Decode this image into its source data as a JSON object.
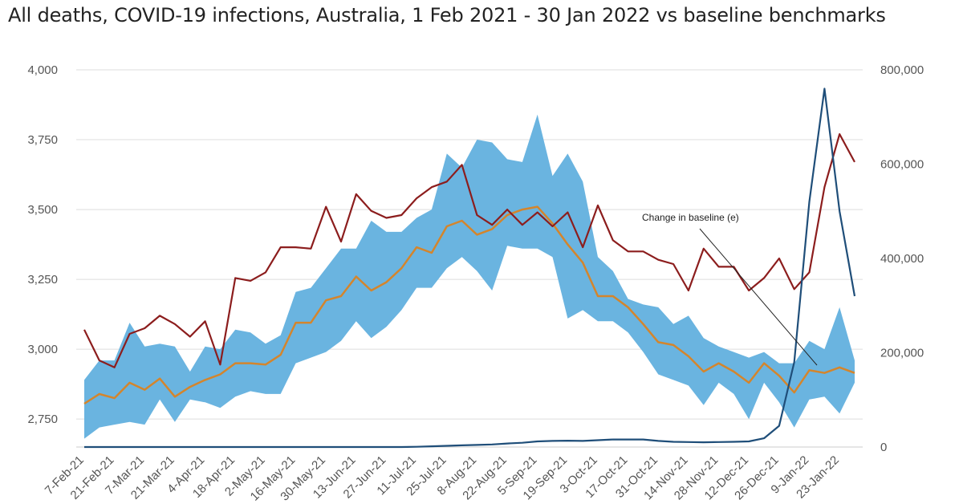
{
  "chart_data": {
    "type": "line",
    "title": "All deaths, COVID-19 infections, Australia, 1 Feb 2021 - 30 Jan 2022 vs baseline benchmarks",
    "ylim_left": [
      2650,
      4000
    ],
    "ylim_right": [
      0,
      800000
    ],
    "y_ticks_left": [
      "2,750",
      "3,000",
      "3,250",
      "3,500",
      "3,750",
      "4,000"
    ],
    "y_tick_values_left": [
      2750,
      3000,
      3250,
      3500,
      3750,
      4000
    ],
    "y_ticks_right": [
      "0",
      "200,000",
      "400,000",
      "600,000",
      "800,000"
    ],
    "y_tick_values_right": [
      0,
      200000,
      400000,
      600000,
      800000
    ],
    "grid": true,
    "categories": [
      "7-Feb-21",
      "14-Feb-21",
      "21-Feb-21",
      "28-Feb-21",
      "7-Mar-21",
      "14-Mar-21",
      "21-Mar-21",
      "28-Mar-21",
      "4-Apr-21",
      "11-Apr-21",
      "18-Apr-21",
      "25-Apr-21",
      "2-May-21",
      "9-May-21",
      "16-May-21",
      "23-May-21",
      "30-May-21",
      "6-Jun-21",
      "13-Jun-21",
      "20-Jun-21",
      "27-Jun-21",
      "4-Jul-21",
      "11-Jul-21",
      "18-Jul-21",
      "25-Jul-21",
      "1-Aug-21",
      "8-Aug-21",
      "15-Aug-21",
      "22-Aug-21",
      "29-Aug-21",
      "5-Sep-21",
      "12-Sep-21",
      "19-Sep-21",
      "26-Sep-21",
      "3-Oct-21",
      "10-Oct-21",
      "17-Oct-21",
      "24-Oct-21",
      "31-Oct-21",
      "7-Nov-21",
      "14-Nov-21",
      "21-Nov-21",
      "28-Nov-21",
      "5-Dec-21",
      "12-Dec-21",
      "19-Dec-21",
      "26-Dec-21",
      "2-Jan-22",
      "9-Jan-22",
      "16-Jan-22",
      "23-Jan-22",
      "30-Jan-22"
    ],
    "x_tick_labels": [
      "7-Feb-21",
      "21-Feb-21",
      "7-Mar-21",
      "21-Mar-21",
      "4-Apr-21",
      "18-Apr-21",
      "2-May-21",
      "16-May-21",
      "30-May-21",
      "13-Jun-21",
      "27-Jun-21",
      "11-Jul-21",
      "25-Jul-21",
      "8-Aug-21",
      "22-Aug-21",
      "5-Sep-21",
      "19-Sep-21",
      "3-Oct-21",
      "17-Oct-21",
      "31-Oct-21",
      "14-Nov-21",
      "28-Nov-21",
      "12-Dec-21",
      "26-Dec-21",
      "9-Jan-22",
      "23-Jan-22"
    ],
    "series": [
      {
        "axis": "left",
        "kind": "band",
        "color": "#6ab4e0",
        "upper": [
          2890,
          2960,
          2960,
          3095,
          3010,
          3020,
          3010,
          2920,
          3010,
          3000,
          3070,
          3060,
          3020,
          3050,
          3205,
          3220,
          3290,
          3360,
          3360,
          3460,
          3420,
          3420,
          3470,
          3500,
          3700,
          3650,
          3750,
          3740,
          3680,
          3670,
          3840,
          3620,
          3700,
          3600,
          3330,
          3280,
          3180,
          3160,
          3150,
          3090,
          3120,
          3040,
          3010,
          2990,
          2970,
          2990,
          2950,
          2950,
          3030,
          3000,
          3150,
          2960
        ],
        "lower": [
          2680,
          2720,
          2730,
          2740,
          2730,
          2820,
          2740,
          2820,
          2810,
          2790,
          2830,
          2850,
          2840,
          2840,
          2950,
          2970,
          2990,
          3030,
          3100,
          3040,
          3080,
          3140,
          3220,
          3220,
          3290,
          3330,
          3280,
          3210,
          3370,
          3360,
          3360,
          3330,
          3110,
          3140,
          3100,
          3100,
          3060,
          2990,
          2910,
          2890,
          2870,
          2800,
          2880,
          2840,
          2750,
          2880,
          2810,
          2720,
          2820,
          2830,
          2770,
          2880
        ]
      },
      {
        "axis": "left",
        "kind": "line",
        "color": "#d4852c",
        "width": 2.5,
        "values": [
          2805,
          2840,
          2825,
          2880,
          2855,
          2895,
          2830,
          2865,
          2890,
          2910,
          2950,
          2950,
          2945,
          2980,
          3095,
          3095,
          3175,
          3190,
          3260,
          3210,
          3240,
          3290,
          3365,
          3345,
          3440,
          3460,
          3410,
          3430,
          3480,
          3500,
          3510,
          3450,
          3375,
          3310,
          3190,
          3190,
          3150,
          3090,
          3025,
          3015,
          2975,
          2920,
          2950,
          2920,
          2880,
          2950,
          2905,
          2845,
          2925,
          2915,
          2935,
          2915
        ]
      },
      {
        "axis": "left",
        "kind": "line",
        "color": "#8c1d1d",
        "width": 2.2,
        "values": [
          3070,
          2960,
          2935,
          3055,
          3075,
          3120,
          3090,
          3045,
          3100,
          2945,
          3255,
          3245,
          3275,
          3365,
          3365,
          3360,
          3510,
          3385,
          3555,
          3495,
          3470,
          3480,
          3540,
          3580,
          3600,
          3660,
          3480,
          3445,
          3500,
          3445,
          3490,
          3440,
          3490,
          3365,
          3515,
          3390,
          3350,
          3350,
          3320,
          3305,
          3210,
          3360,
          3295,
          3295,
          3210,
          3255,
          3325,
          3215,
          3275,
          3580,
          3770,
          3670
        ]
      },
      {
        "axis": "right",
        "kind": "line",
        "color": "#1f4e79",
        "width": 2.2,
        "values": [
          0,
          0,
          0,
          0,
          0,
          0,
          0,
          0,
          0,
          0,
          0,
          0,
          0,
          0,
          0,
          0,
          0,
          0,
          0,
          0,
          0,
          0,
          500,
          1500,
          2500,
          3500,
          4500,
          5500,
          7500,
          9000,
          12000,
          13000,
          13500,
          13000,
          14500,
          16000,
          16000,
          16000,
          13000,
          11000,
          10500,
          10000,
          10500,
          11000,
          12000,
          18500,
          45000,
          180000,
          520000,
          760000,
          500000,
          320000
        ]
      }
    ],
    "annotation": "Change in baseline (e)"
  }
}
